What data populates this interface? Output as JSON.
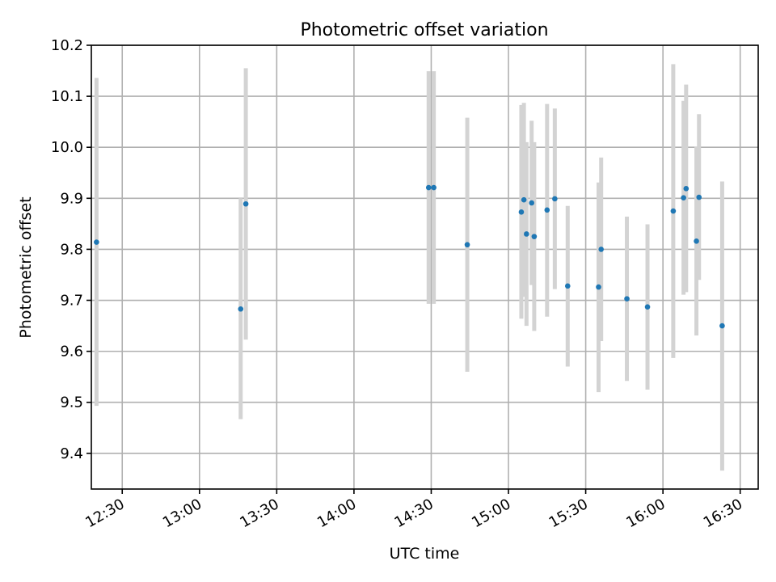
{
  "chart_data": {
    "type": "scatter",
    "title": "Photometric offset variation",
    "xlabel": "UTC time",
    "ylabel": "Photometric offset",
    "x_axis_type": "time",
    "xlim": [
      "12:18",
      "16:37"
    ],
    "ylim": [
      9.33,
      10.2
    ],
    "xticks": [
      "12:30",
      "13:00",
      "13:30",
      "14:00",
      "14:30",
      "15:00",
      "15:30",
      "16:00",
      "16:30"
    ],
    "yticks": [
      9.4,
      9.5,
      9.6,
      9.7,
      9.8,
      9.9,
      10.0,
      10.1,
      10.2
    ],
    "ytick_labels": [
      "9.4",
      "9.5",
      "9.6",
      "9.7",
      "9.8",
      "9.9",
      "10.0",
      "10.1",
      "10.2"
    ],
    "grid": true,
    "point_color": "#1f77b4",
    "errorbar_color": "#d3d3d3",
    "points": [
      {
        "x": "12:20",
        "y": 9.814,
        "ylow": 9.493,
        "yhigh": 10.136
      },
      {
        "x": "13:16",
        "y": 9.683,
        "ylow": 9.467,
        "yhigh": 9.9
      },
      {
        "x": "13:18",
        "y": 9.889,
        "ylow": 9.623,
        "yhigh": 10.155
      },
      {
        "x": "14:29",
        "y": 9.921,
        "ylow": 9.693,
        "yhigh": 10.149
      },
      {
        "x": "14:31",
        "y": 9.921,
        "ylow": 9.693,
        "yhigh": 10.149
      },
      {
        "x": "14:44",
        "y": 9.809,
        "ylow": 9.56,
        "yhigh": 10.058
      },
      {
        "x": "15:05",
        "y": 9.873,
        "ylow": 9.664,
        "yhigh": 10.083
      },
      {
        "x": "15:06",
        "y": 9.897,
        "ylow": 9.707,
        "yhigh": 10.087
      },
      {
        "x": "15:07",
        "y": 9.83,
        "ylow": 9.65,
        "yhigh": 10.01
      },
      {
        "x": "15:09",
        "y": 9.891,
        "ylow": 9.73,
        "yhigh": 10.052
      },
      {
        "x": "15:10",
        "y": 9.825,
        "ylow": 9.64,
        "yhigh": 10.01
      },
      {
        "x": "15:15",
        "y": 9.877,
        "ylow": 9.668,
        "yhigh": 10.085
      },
      {
        "x": "15:18",
        "y": 9.899,
        "ylow": 9.722,
        "yhigh": 10.076
      },
      {
        "x": "15:23",
        "y": 9.728,
        "ylow": 9.57,
        "yhigh": 9.885
      },
      {
        "x": "15:35",
        "y": 9.726,
        "ylow": 9.52,
        "yhigh": 9.931
      },
      {
        "x": "15:36",
        "y": 9.8,
        "ylow": 9.62,
        "yhigh": 9.98
      },
      {
        "x": "15:46",
        "y": 9.703,
        "ylow": 9.542,
        "yhigh": 9.864
      },
      {
        "x": "15:54",
        "y": 9.687,
        "ylow": 9.525,
        "yhigh": 9.849
      },
      {
        "x": "16:04",
        "y": 9.875,
        "ylow": 9.587,
        "yhigh": 10.163
      },
      {
        "x": "16:08",
        "y": 9.901,
        "ylow": 9.711,
        "yhigh": 10.091
      },
      {
        "x": "16:09",
        "y": 9.919,
        "ylow": 9.716,
        "yhigh": 10.123
      },
      {
        "x": "16:13",
        "y": 9.816,
        "ylow": 9.631,
        "yhigh": 10.001
      },
      {
        "x": "16:14",
        "y": 9.902,
        "ylow": 9.74,
        "yhigh": 10.065
      },
      {
        "x": "16:23",
        "y": 9.65,
        "ylow": 9.366,
        "yhigh": 9.933
      }
    ]
  }
}
